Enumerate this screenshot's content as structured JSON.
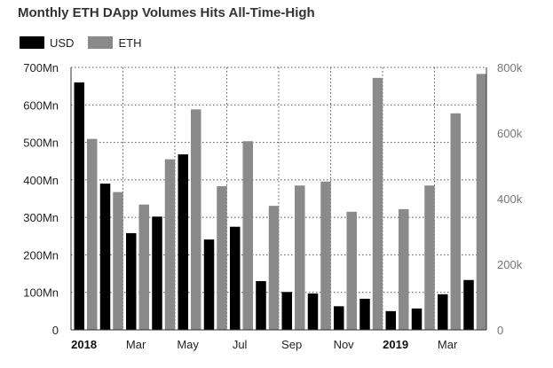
{
  "chart_data": {
    "type": "bar",
    "title": "Monthly ETH DApp Volumes Hits All-Time-High",
    "legend_placement": "top-left",
    "grid": true,
    "colors": {
      "USD": "#000000",
      "ETH": "#8a8a8a"
    },
    "x_tick_labels": [
      {
        "label": "2018",
        "month_index": 0,
        "bold": true
      },
      {
        "label": "Mar",
        "month_index": 2,
        "bold": false
      },
      {
        "label": "May",
        "month_index": 4,
        "bold": false
      },
      {
        "label": "Jul",
        "month_index": 6,
        "bold": false
      },
      {
        "label": "Sep",
        "month_index": 8,
        "bold": false
      },
      {
        "label": "Nov",
        "month_index": 10,
        "bold": false
      },
      {
        "label": "2019",
        "month_index": 12,
        "bold": true
      },
      {
        "label": "Mar",
        "month_index": 14,
        "bold": false
      }
    ],
    "categories": [
      "2018-01",
      "2018-02",
      "2018-03",
      "2018-04",
      "2018-05",
      "2018-06",
      "2018-07",
      "2018-08",
      "2018-09",
      "2018-10",
      "2018-11",
      "2018-12",
      "2019-01",
      "2019-02",
      "2019-03",
      "2019-04"
    ],
    "series": [
      {
        "name": "USD",
        "axis": "left",
        "values": [
          660,
          390,
          258,
          302,
          468,
          241,
          275,
          130,
          101,
          97,
          63,
          83,
          50,
          57,
          95,
          133
        ]
      },
      {
        "name": "ETH",
        "axis": "right",
        "values": [
          582,
          420,
          382,
          520,
          672,
          438,
          575,
          378,
          440,
          452,
          360,
          768,
          368,
          440,
          660,
          780
        ]
      }
    ],
    "y_left": {
      "min": 0,
      "max": 700,
      "ticks": [
        {
          "value": 0,
          "label": "0"
        },
        {
          "value": 100,
          "label": "100Mn"
        },
        {
          "value": 200,
          "label": "200Mn"
        },
        {
          "value": 300,
          "label": "300Mn"
        },
        {
          "value": 400,
          "label": "400Mn"
        },
        {
          "value": 500,
          "label": "500Mn"
        },
        {
          "value": 600,
          "label": "600Mn"
        },
        {
          "value": 700,
          "label": "700Mn"
        }
      ]
    },
    "y_right": {
      "min": 0,
      "max": 800,
      "ticks": [
        {
          "value": 0,
          "label": "0"
        },
        {
          "value": 200,
          "label": "200k"
        },
        {
          "value": 400,
          "label": "400k"
        },
        {
          "value": 600,
          "label": "600k"
        },
        {
          "value": 800,
          "label": "800k"
        }
      ]
    }
  }
}
